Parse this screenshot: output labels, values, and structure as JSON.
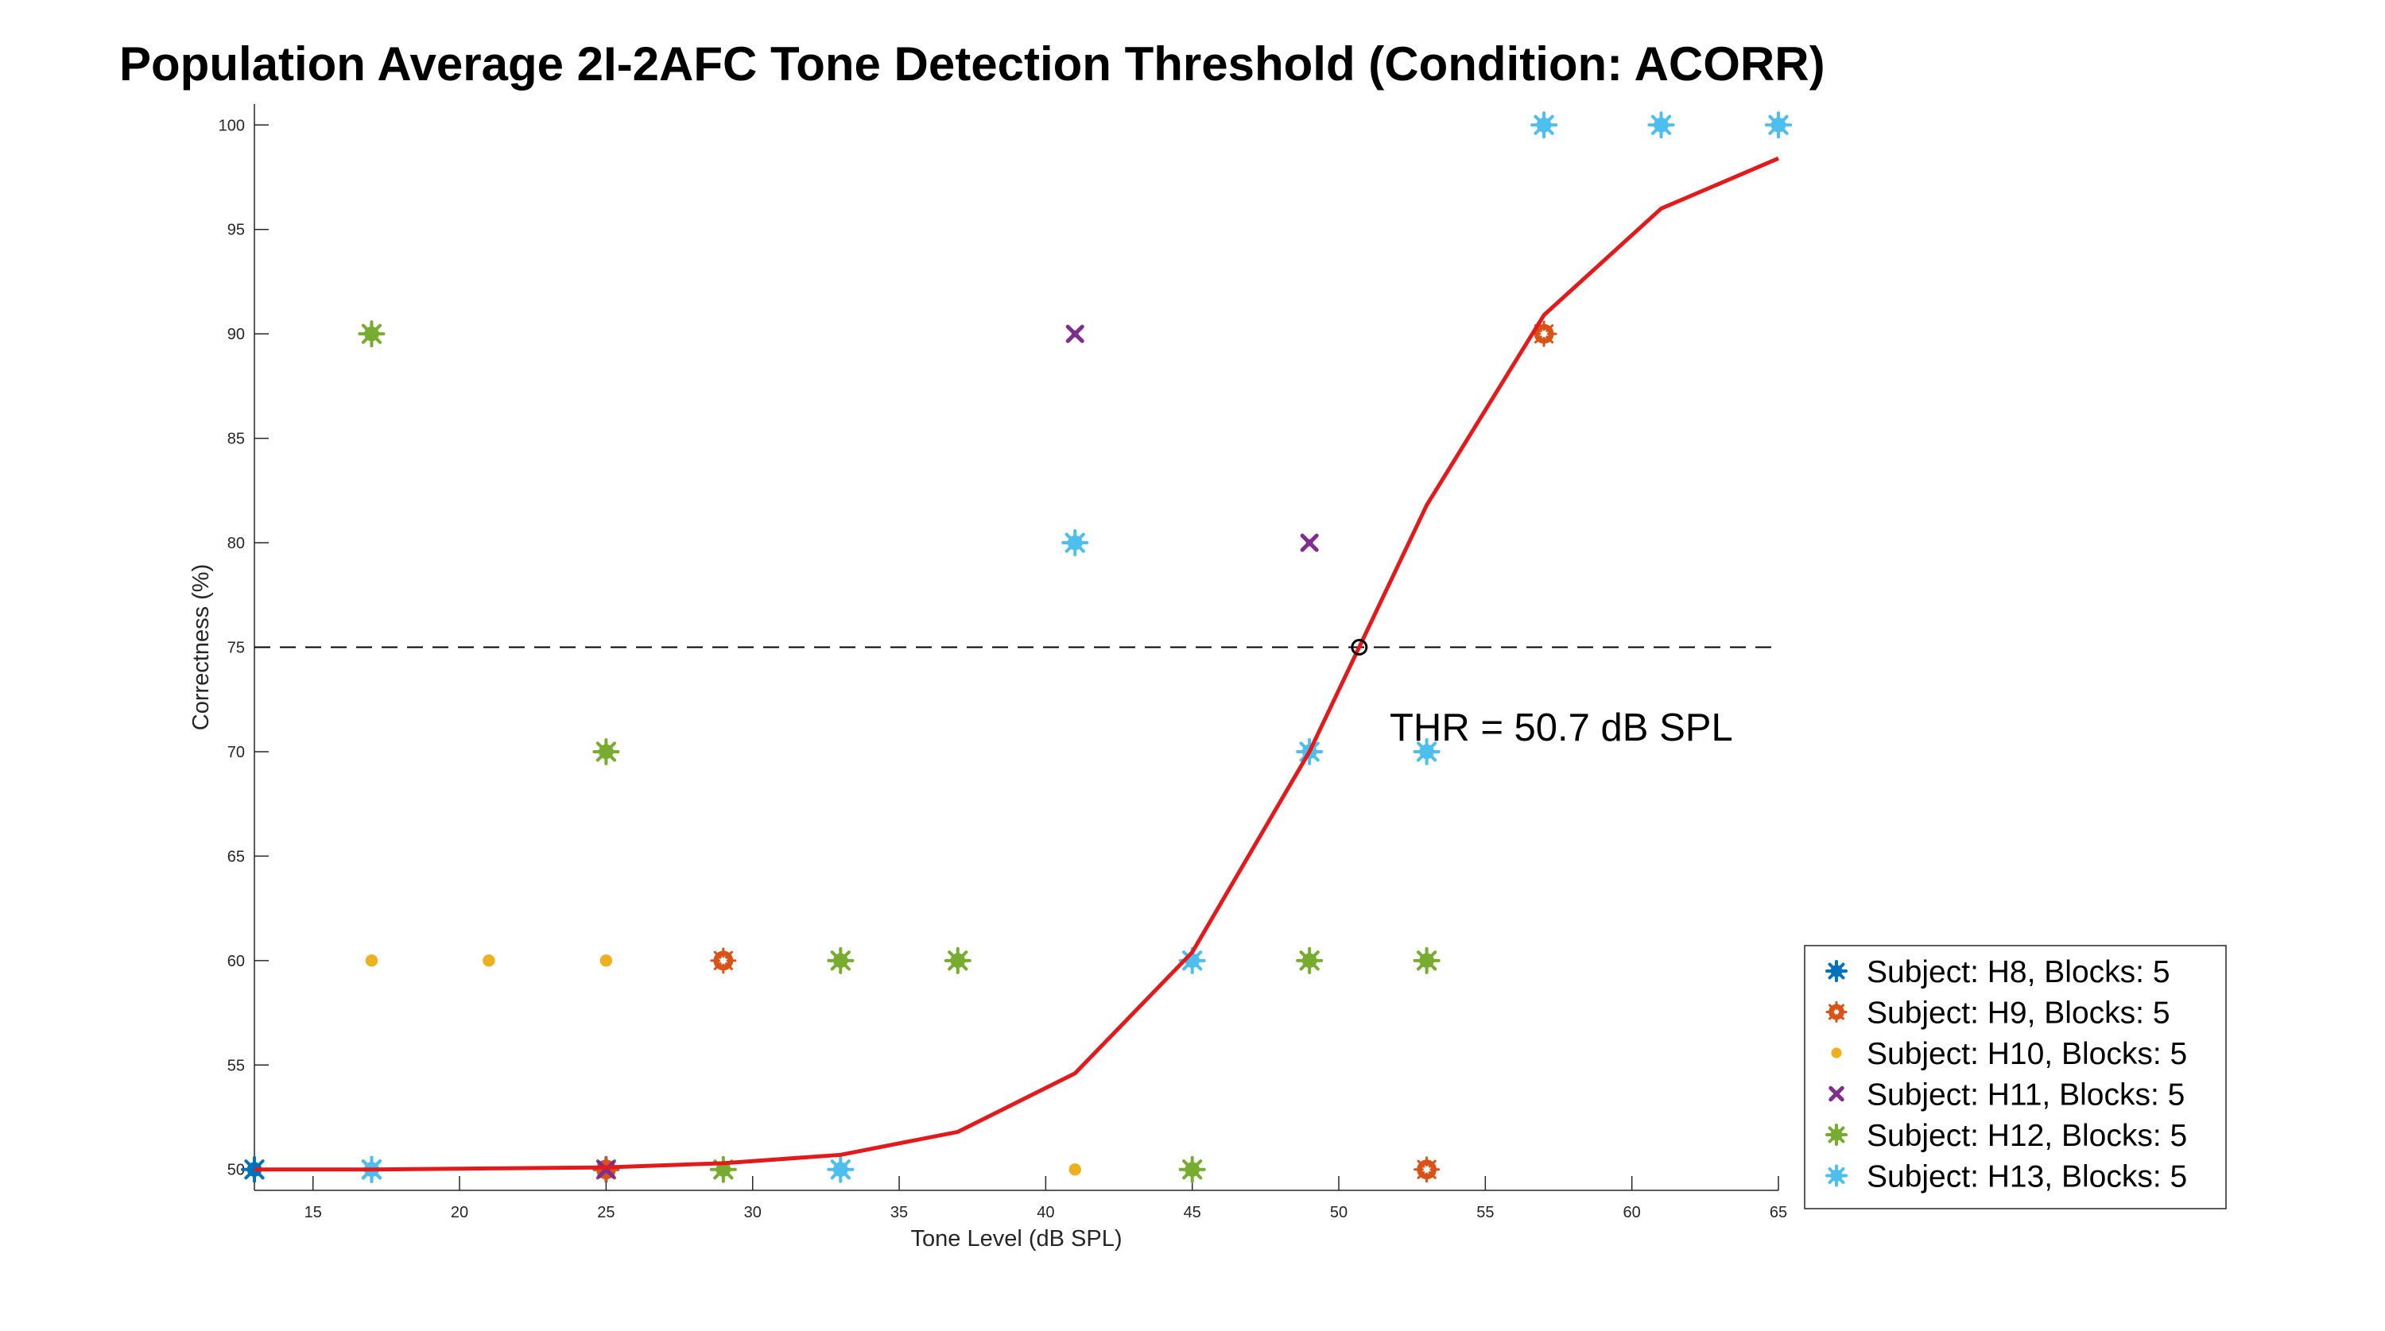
{
  "chart_data": {
    "type": "scatter",
    "title": "Population Average 2I-2AFC Tone Detection Threshold (Condition: ACORR)",
    "xlabel": "Tone Level (dB SPL)",
    "ylabel": "Correctness (%)",
    "xlim": [
      13,
      65
    ],
    "ylim": [
      49,
      101
    ],
    "xticks": [
      15,
      20,
      25,
      30,
      35,
      40,
      45,
      50,
      55,
      60,
      65
    ],
    "yticks": [
      50,
      55,
      60,
      65,
      70,
      75,
      80,
      85,
      90,
      95,
      100
    ],
    "grid": false,
    "legend_position": "bottom-right",
    "criterion_line": {
      "y": 75,
      "style": "dashed",
      "color": "#000000"
    },
    "threshold": {
      "x": 50.7,
      "y": 75,
      "label": "THR = 50.7 dB SPL"
    },
    "fit_curve": {
      "color": "#e31a1c",
      "x": [
        13,
        17,
        21,
        25,
        29,
        33,
        37,
        41,
        45,
        49,
        53,
        57,
        61,
        65
      ],
      "y": [
        50.0,
        50.0,
        50.05,
        50.1,
        50.3,
        50.7,
        51.8,
        54.6,
        60.4,
        70.0,
        81.8,
        90.9,
        96.0,
        98.4
      ]
    },
    "series": [
      {
        "name": "Subject: H8, Blocks: 5",
        "color": "#0072bd",
        "marker": "star",
        "x": [
          13,
          17,
          25
        ],
        "y": [
          50,
          50,
          50
        ]
      },
      {
        "name": "Subject: H9, Blocks: 5",
        "color": "#d95319",
        "marker": "ring",
        "x": [
          25,
          29,
          53,
          57
        ],
        "y": [
          50,
          60,
          50,
          90
        ]
      },
      {
        "name": "Subject: H10, Blocks: 5",
        "color": "#edb120",
        "marker": "dot",
        "x": [
          17,
          21,
          25,
          41
        ],
        "y": [
          60,
          60,
          60,
          50
        ]
      },
      {
        "name": "Subject: H11, Blocks: 5",
        "color": "#7e2f8e",
        "marker": "cross",
        "x": [
          25,
          41,
          49
        ],
        "y": [
          50,
          90,
          80
        ]
      },
      {
        "name": "Subject: H12, Blocks: 5",
        "color": "#77ac30",
        "marker": "star",
        "x": [
          17,
          25,
          29,
          33,
          37,
          45,
          49,
          53
        ],
        "y": [
          90,
          70,
          50,
          60,
          60,
          50,
          60,
          60
        ]
      },
      {
        "name": "Subject: H13, Blocks: 5",
        "color": "#4dbeee",
        "marker": "star",
        "x": [
          17,
          33,
          41,
          45,
          49,
          53,
          57,
          61,
          65
        ],
        "y": [
          50,
          50,
          80,
          60,
          70,
          70,
          100,
          100,
          100
        ]
      }
    ]
  }
}
